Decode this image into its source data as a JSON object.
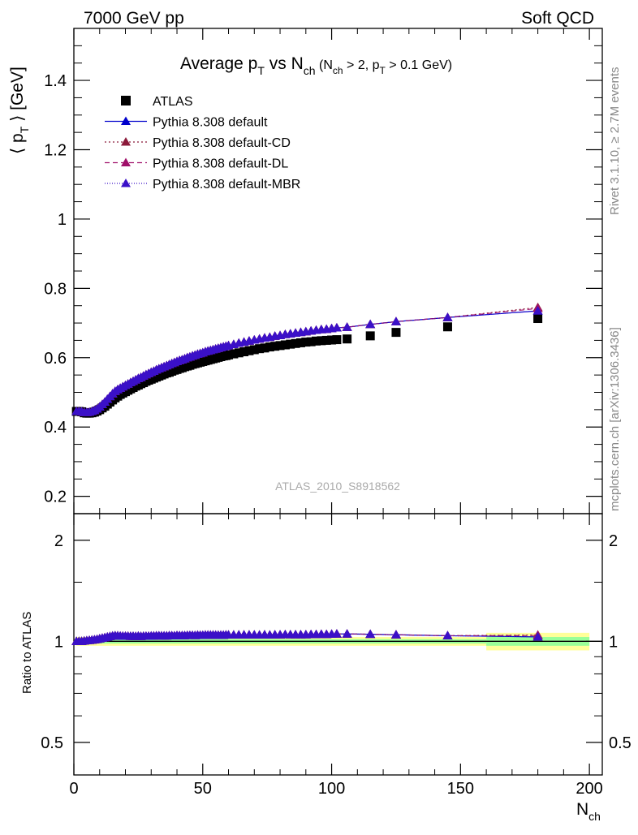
{
  "header": {
    "left": "7000 GeV pp",
    "right": "Soft QCD"
  },
  "side": {
    "rivet": "Rivet 3.1.10, ≥ 2.7M events",
    "mcplots": "mcplots.cern.ch [arXiv:1306.3436]"
  },
  "watermark": "ATLAS_2010_S8918562",
  "chart_data": {
    "type": "scatter",
    "title": {
      "main": "Average p",
      "main_sub": "T",
      "vs": " vs N",
      "vs_sub": "ch",
      "cuts": " (N",
      "cuts_sub1": "ch",
      "cuts_mid": " > 2, p",
      "cuts_sub2": "T",
      "cuts_end": " > 0.1 GeV)"
    },
    "ylabel": {
      "pre": "⟨ p",
      "sub": "T",
      "post": " ⟩ [GeV]"
    },
    "xlabel": {
      "main": "N",
      "sub": "ch"
    },
    "ratio_ylabel": "Ratio to ATLAS",
    "xlim": [
      0,
      205
    ],
    "ylim": [
      0.15,
      1.55
    ],
    "ratio_ylim": [
      0.4,
      2.4
    ],
    "x_ticks": [
      "0",
      "50",
      "100",
      "150",
      "200"
    ],
    "y_ticks": [
      "0.2",
      "0.4",
      "0.6",
      "0.8",
      "1",
      "1.2",
      "1.4"
    ],
    "ratio_ticks": [
      "0.5",
      "1",
      "2"
    ],
    "legend": [
      {
        "name": "ATLAS",
        "color": "#000000",
        "marker": "square",
        "line": "none"
      },
      {
        "name": "Pythia 8.308 default",
        "color": "#0000cc",
        "marker": "triangle",
        "line": "solid"
      },
      {
        "name": "Pythia 8.308 default-CD",
        "color": "#8b1a3a",
        "marker": "triangle",
        "line": "dotted"
      },
      {
        "name": "Pythia 8.308 default-DL",
        "color": "#a0106a",
        "marker": "triangle",
        "line": "dashed"
      },
      {
        "name": "Pythia 8.308 default-MBR",
        "color": "#3a10c8",
        "marker": "triangle",
        "line": "dotted"
      }
    ],
    "data": {
      "x": [
        1,
        2,
        3,
        4,
        5,
        6,
        7,
        8,
        9,
        10,
        11,
        12,
        13,
        14,
        15,
        16,
        17,
        18,
        19,
        20,
        21,
        22,
        23,
        24,
        25,
        26,
        27,
        28,
        29,
        30,
        31,
        32,
        33,
        34,
        35,
        36,
        37,
        38,
        39,
        40,
        41,
        42,
        43,
        44,
        45,
        46,
        47,
        48,
        49,
        50,
        51,
        52,
        53,
        54,
        55,
        56,
        57,
        58,
        59,
        60,
        62,
        64,
        66,
        68,
        70,
        72,
        74,
        76,
        78,
        80,
        82,
        84,
        86,
        88,
        90,
        92,
        94,
        96,
        98,
        100,
        102,
        106,
        115,
        125,
        145,
        180
      ],
      "atlas": [
        0.445,
        0.445,
        0.444,
        0.441,
        0.44,
        0.44,
        0.441,
        0.443,
        0.446,
        0.45,
        0.455,
        0.46,
        0.466,
        0.472,
        0.478,
        0.484,
        0.489,
        0.494,
        0.498,
        0.502,
        0.506,
        0.51,
        0.514,
        0.518,
        0.521,
        0.525,
        0.528,
        0.532,
        0.535,
        0.538,
        0.541,
        0.544,
        0.547,
        0.55,
        0.553,
        0.556,
        0.558,
        0.561,
        0.564,
        0.566,
        0.569,
        0.571,
        0.574,
        0.576,
        0.578,
        0.581,
        0.583,
        0.585,
        0.587,
        0.589,
        0.591,
        0.593,
        0.595,
        0.597,
        0.599,
        0.601,
        0.603,
        0.605,
        0.606,
        0.608,
        0.611,
        0.614,
        0.617,
        0.62,
        0.623,
        0.626,
        0.628,
        0.631,
        0.633,
        0.635,
        0.637,
        0.639,
        0.641,
        0.643,
        0.645,
        0.646,
        0.648,
        0.649,
        0.65,
        0.651,
        0.652,
        0.654,
        0.663,
        0.673,
        0.689,
        0.713
      ],
      "pythia": [
        0.445,
        0.445,
        0.444,
        0.442,
        0.442,
        0.443,
        0.445,
        0.448,
        0.452,
        0.458,
        0.465,
        0.472,
        0.48,
        0.488,
        0.496,
        0.503,
        0.508,
        0.512,
        0.516,
        0.52,
        0.524,
        0.528,
        0.532,
        0.536,
        0.54,
        0.543,
        0.547,
        0.551,
        0.554,
        0.558,
        0.561,
        0.565,
        0.568,
        0.571,
        0.574,
        0.577,
        0.58,
        0.583,
        0.586,
        0.589,
        0.592,
        0.594,
        0.597,
        0.6,
        0.602,
        0.605,
        0.607,
        0.61,
        0.612,
        0.614,
        0.617,
        0.619,
        0.621,
        0.623,
        0.625,
        0.627,
        0.629,
        0.631,
        0.633,
        0.635,
        0.638,
        0.642,
        0.645,
        0.648,
        0.651,
        0.654,
        0.657,
        0.659,
        0.662,
        0.664,
        0.667,
        0.669,
        0.671,
        0.673,
        0.675,
        0.677,
        0.679,
        0.681,
        0.682,
        0.684,
        0.686,
        0.688,
        0.696,
        0.704,
        0.716,
        0.735
      ],
      "pythia_cd": [
        0.445,
        0.445,
        0.444,
        0.442,
        0.442,
        0.443,
        0.445,
        0.448,
        0.452,
        0.458,
        0.465,
        0.472,
        0.48,
        0.488,
        0.496,
        0.503,
        0.508,
        0.512,
        0.516,
        0.52,
        0.524,
        0.528,
        0.532,
        0.536,
        0.54,
        0.543,
        0.547,
        0.551,
        0.554,
        0.558,
        0.561,
        0.565,
        0.568,
        0.571,
        0.574,
        0.577,
        0.58,
        0.583,
        0.586,
        0.589,
        0.592,
        0.594,
        0.597,
        0.6,
        0.602,
        0.605,
        0.607,
        0.61,
        0.612,
        0.614,
        0.617,
        0.619,
        0.621,
        0.623,
        0.625,
        0.627,
        0.629,
        0.631,
        0.633,
        0.635,
        0.638,
        0.642,
        0.645,
        0.648,
        0.651,
        0.654,
        0.657,
        0.659,
        0.662,
        0.664,
        0.667,
        0.669,
        0.671,
        0.673,
        0.675,
        0.677,
        0.679,
        0.681,
        0.682,
        0.684,
        0.686,
        0.688,
        0.696,
        0.704,
        0.716,
        0.745
      ],
      "pythia_dl": [
        0.445,
        0.445,
        0.444,
        0.442,
        0.442,
        0.443,
        0.445,
        0.448,
        0.452,
        0.458,
        0.465,
        0.472,
        0.48,
        0.488,
        0.496,
        0.503,
        0.508,
        0.512,
        0.516,
        0.52,
        0.524,
        0.528,
        0.532,
        0.536,
        0.54,
        0.543,
        0.547,
        0.551,
        0.554,
        0.558,
        0.561,
        0.565,
        0.568,
        0.571,
        0.574,
        0.577,
        0.58,
        0.583,
        0.586,
        0.589,
        0.592,
        0.594,
        0.597,
        0.6,
        0.602,
        0.605,
        0.607,
        0.61,
        0.612,
        0.614,
        0.617,
        0.619,
        0.621,
        0.623,
        0.625,
        0.627,
        0.629,
        0.631,
        0.633,
        0.635,
        0.638,
        0.642,
        0.645,
        0.648,
        0.651,
        0.654,
        0.657,
        0.659,
        0.662,
        0.664,
        0.667,
        0.669,
        0.671,
        0.673,
        0.675,
        0.677,
        0.679,
        0.681,
        0.682,
        0.684,
        0.686,
        0.688,
        0.696,
        0.704,
        0.716,
        0.742
      ],
      "pythia_mbr": [
        0.445,
        0.445,
        0.444,
        0.442,
        0.442,
        0.443,
        0.445,
        0.448,
        0.452,
        0.458,
        0.465,
        0.472,
        0.48,
        0.488,
        0.496,
        0.503,
        0.508,
        0.512,
        0.516,
        0.52,
        0.524,
        0.528,
        0.532,
        0.536,
        0.54,
        0.543,
        0.547,
        0.551,
        0.554,
        0.558,
        0.561,
        0.565,
        0.568,
        0.571,
        0.574,
        0.577,
        0.58,
        0.583,
        0.586,
        0.589,
        0.592,
        0.594,
        0.597,
        0.6,
        0.602,
        0.605,
        0.607,
        0.61,
        0.612,
        0.614,
        0.617,
        0.619,
        0.621,
        0.623,
        0.625,
        0.627,
        0.629,
        0.631,
        0.633,
        0.635,
        0.638,
        0.642,
        0.645,
        0.648,
        0.651,
        0.654,
        0.657,
        0.659,
        0.662,
        0.664,
        0.667,
        0.669,
        0.671,
        0.673,
        0.675,
        0.677,
        0.679,
        0.681,
        0.682,
        0.684,
        0.686,
        0.688,
        0.696,
        0.704,
        0.716,
        0.735
      ]
    },
    "bands": [
      {
        "x0": 1,
        "x1": 160,
        "yellow": [
          0.97,
          1.03
        ],
        "green": [
          0.985,
          1.015
        ]
      },
      {
        "x0": 160,
        "x1": 200,
        "yellow": [
          0.94,
          1.06
        ],
        "green": [
          0.97,
          1.03
        ]
      }
    ],
    "band_colors": {
      "yellow": "#ffff99",
      "green": "#99ff99"
    }
  }
}
